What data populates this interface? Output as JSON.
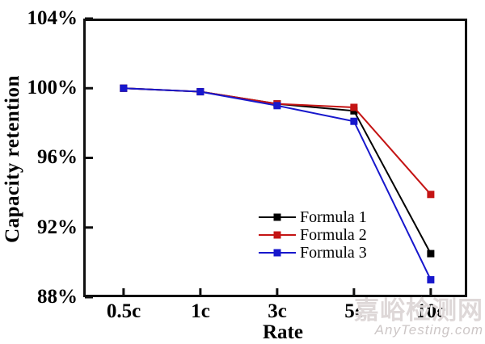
{
  "chart_data": {
    "type": "line",
    "title": "",
    "xlabel": "Rate",
    "ylabel": "Capacity retention",
    "categories": [
      "0.5c",
      "1c",
      "3c",
      "5c",
      "10c"
    ],
    "ytick_labels": [
      "104%",
      "100%",
      "96%",
      "92%",
      "88%"
    ],
    "yticks": [
      104,
      100,
      96,
      92,
      88
    ],
    "ylim": [
      88,
      104
    ],
    "grid": false,
    "legend_position": "inside-lower-center",
    "marker": "square",
    "series": [
      {
        "name": "Formula 1",
        "color": "#000000",
        "values": [
          100.0,
          99.8,
          99.1,
          98.7,
          90.5
        ]
      },
      {
        "name": "Formula 2",
        "color": "#c41414",
        "values": [
          100.0,
          99.8,
          99.1,
          98.9,
          93.9
        ]
      },
      {
        "name": "Formula 3",
        "color": "#1717cc",
        "values": [
          100.0,
          99.8,
          99.0,
          98.1,
          89.0
        ]
      }
    ]
  },
  "watermark": {
    "line1": "嘉峪检测网",
    "line2": "AnyTesting.com"
  }
}
